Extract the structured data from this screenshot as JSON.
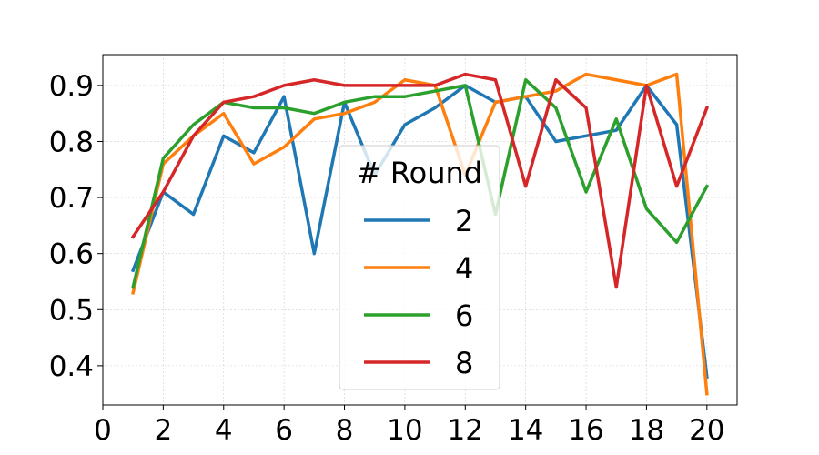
{
  "chart_data": {
    "type": "line",
    "title": "",
    "xlabel": "",
    "ylabel": "",
    "xlim": [
      0,
      21
    ],
    "ylim": [
      0.33,
      0.955
    ],
    "xticks": [
      0,
      2,
      4,
      6,
      8,
      10,
      12,
      14,
      16,
      18,
      20
    ],
    "yticks": [
      0.4,
      0.5,
      0.6,
      0.7,
      0.8,
      0.9
    ],
    "xtick_labels": [
      "0",
      "2",
      "4",
      "6",
      "8",
      "10",
      "12",
      "14",
      "16",
      "18",
      "20"
    ],
    "ytick_labels": [
      "0.4",
      "0.5",
      "0.6",
      "0.7",
      "0.8",
      "0.9"
    ],
    "grid": true,
    "legend": {
      "title": "# Round",
      "placement": "center"
    },
    "x": [
      1,
      2,
      3,
      4,
      5,
      6,
      7,
      8,
      9,
      10,
      11,
      12,
      13,
      14,
      15,
      16,
      17,
      18,
      19,
      20
    ],
    "series": [
      {
        "name": "2",
        "color": "#1f77b4",
        "values": [
          0.57,
          0.71,
          0.67,
          0.81,
          0.78,
          0.88,
          0.6,
          0.87,
          0.74,
          0.83,
          0.86,
          0.9,
          0.87,
          0.88,
          0.8,
          0.81,
          0.82,
          0.9,
          0.83,
          0.38
        ]
      },
      {
        "name": "4",
        "color": "#ff7f0e",
        "values": [
          0.53,
          0.76,
          0.81,
          0.85,
          0.76,
          0.79,
          0.84,
          0.85,
          0.87,
          0.91,
          0.9,
          0.74,
          0.87,
          0.88,
          0.89,
          0.92,
          0.91,
          0.9,
          0.92,
          0.35
        ]
      },
      {
        "name": "6",
        "color": "#2ca02c",
        "values": [
          0.54,
          0.77,
          0.83,
          0.87,
          0.86,
          0.86,
          0.85,
          0.87,
          0.88,
          0.88,
          0.89,
          0.9,
          0.67,
          0.91,
          0.86,
          0.71,
          0.84,
          0.68,
          0.62,
          0.72
        ]
      },
      {
        "name": "8",
        "color": "#d62728",
        "values": [
          0.63,
          0.71,
          0.81,
          0.87,
          0.88,
          0.9,
          0.91,
          0.9,
          0.9,
          0.9,
          0.9,
          0.92,
          0.91,
          0.72,
          0.91,
          0.86,
          0.54,
          0.9,
          0.72,
          0.86
        ]
      }
    ]
  }
}
